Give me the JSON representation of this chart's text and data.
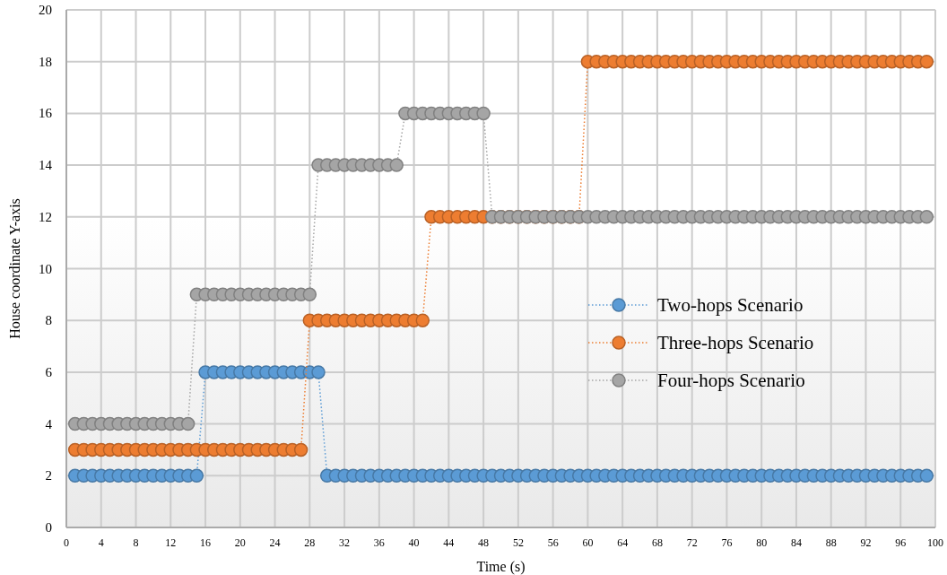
{
  "chart_data": {
    "type": "line",
    "xlabel": "Time (s)",
    "ylabel": "House coordinate Y-axis",
    "x": [
      1,
      2,
      3,
      4,
      5,
      6,
      7,
      8,
      9,
      10,
      11,
      12,
      13,
      14,
      15,
      16,
      17,
      18,
      19,
      20,
      21,
      22,
      23,
      24,
      25,
      26,
      27,
      28,
      29,
      30,
      31,
      32,
      33,
      34,
      35,
      36,
      37,
      38,
      39,
      40,
      41,
      42,
      43,
      44,
      45,
      46,
      47,
      48,
      49,
      50,
      51,
      52,
      53,
      54,
      55,
      56,
      57,
      58,
      59,
      60,
      61,
      62,
      63,
      64,
      65,
      66,
      67,
      68,
      69,
      70,
      71,
      72,
      73,
      74,
      75,
      76,
      77,
      78,
      79,
      80,
      81,
      82,
      83,
      84,
      85,
      86,
      87,
      88,
      89,
      90,
      91,
      92,
      93,
      94,
      95,
      96,
      97,
      98,
      99
    ],
    "series": [
      {
        "name": "Two-hops Scenario",
        "color": "#5b9bd5",
        "values": [
          2,
          2,
          2,
          2,
          2,
          2,
          2,
          2,
          2,
          2,
          2,
          2,
          2,
          2,
          2,
          6,
          6,
          6,
          6,
          6,
          6,
          6,
          6,
          6,
          6,
          6,
          6,
          6,
          6,
          2,
          2,
          2,
          2,
          2,
          2,
          2,
          2,
          2,
          2,
          2,
          2,
          2,
          2,
          2,
          2,
          2,
          2,
          2,
          2,
          2,
          2,
          2,
          2,
          2,
          2,
          2,
          2,
          2,
          2,
          2,
          2,
          2,
          2,
          2,
          2,
          2,
          2,
          2,
          2,
          2,
          2,
          2,
          2,
          2,
          2,
          2,
          2,
          2,
          2,
          2,
          2,
          2,
          2,
          2,
          2,
          2,
          2,
          2,
          2,
          2,
          2,
          2,
          2,
          2,
          2,
          2,
          2,
          2,
          2
        ]
      },
      {
        "name": "Three-hops Scenario",
        "color": "#ed7d31",
        "values": [
          3,
          3,
          3,
          3,
          3,
          3,
          3,
          3,
          3,
          3,
          3,
          3,
          3,
          3,
          3,
          3,
          3,
          3,
          3,
          3,
          3,
          3,
          3,
          3,
          3,
          3,
          3,
          8,
          8,
          8,
          8,
          8,
          8,
          8,
          8,
          8,
          8,
          8,
          8,
          8,
          8,
          12,
          12,
          12,
          12,
          12,
          12,
          12,
          12,
          12,
          12,
          12,
          12,
          12,
          12,
          12,
          12,
          12,
          12,
          18,
          18,
          18,
          18,
          18,
          18,
          18,
          18,
          18,
          18,
          18,
          18,
          18,
          18,
          18,
          18,
          18,
          18,
          18,
          18,
          18,
          18,
          18,
          18,
          18,
          18,
          18,
          18,
          18,
          18,
          18,
          18,
          18,
          18,
          18,
          18,
          18,
          18,
          18,
          18
        ]
      },
      {
        "name": "Four-hops Scenario",
        "color": "#a5a5a5",
        "values": [
          4,
          4,
          4,
          4,
          4,
          4,
          4,
          4,
          4,
          4,
          4,
          4,
          4,
          4,
          9,
          9,
          9,
          9,
          9,
          9,
          9,
          9,
          9,
          9,
          9,
          9,
          9,
          9,
          14,
          14,
          14,
          14,
          14,
          14,
          14,
          14,
          14,
          14,
          16,
          16,
          16,
          16,
          16,
          16,
          16,
          16,
          16,
          16,
          12,
          12,
          12,
          12,
          12,
          12,
          12,
          12,
          12,
          12,
          12,
          12,
          12,
          12,
          12,
          12,
          12,
          12,
          12,
          12,
          12,
          12,
          12,
          12,
          12,
          12,
          12,
          12,
          12,
          12,
          12,
          12,
          12,
          12,
          12,
          12,
          12,
          12,
          12,
          12,
          12,
          12,
          12,
          12,
          12,
          12,
          12,
          12,
          12,
          12,
          12
        ]
      }
    ],
    "xlim": [
      0,
      100
    ],
    "xticks": [
      0,
      4,
      8,
      12,
      16,
      20,
      24,
      28,
      32,
      36,
      40,
      44,
      48,
      52,
      56,
      60,
      64,
      68,
      72,
      76,
      80,
      84,
      88,
      92,
      96,
      100
    ],
    "ylim": [
      0,
      20
    ],
    "yticks": [
      0,
      2,
      4,
      6,
      8,
      10,
      12,
      14,
      16,
      18,
      20
    ],
    "grid": true,
    "legend": "right",
    "marker": "circle",
    "line_style": "dotted"
  }
}
